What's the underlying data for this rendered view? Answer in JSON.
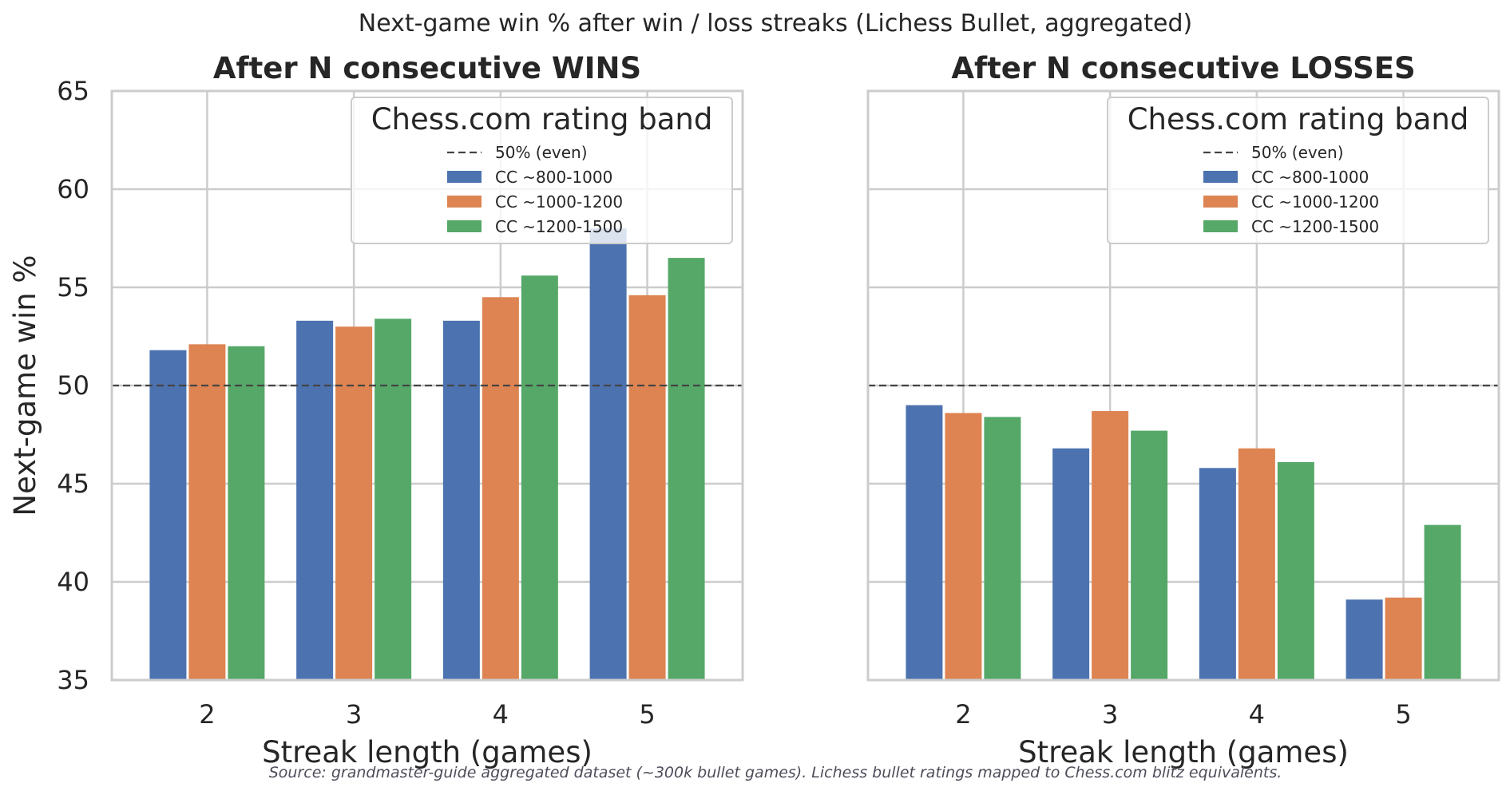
{
  "suptitle": "Next-game win % after win / loss streaks (Lichess Bullet, aggregated)",
  "footer": "Source: grandmaster-guide aggregated dataset (~300k bullet games). Lichess bullet ratings mapped to Chess.com blitz equivalents.",
  "colors": {
    "series": [
      "#4c72b0",
      "#dd8452",
      "#55a868"
    ],
    "reference": "#444444",
    "grid": "#cccccc",
    "spine": "#cccccc"
  },
  "chart_data": [
    {
      "type": "bar",
      "title": "After N consecutive WINS",
      "xlabel": "Streak length (games)",
      "ylabel": "Next-game win %",
      "categories": [
        "2",
        "3",
        "4",
        "5"
      ],
      "ylim": [
        35,
        65
      ],
      "yticks": [
        "35",
        "40",
        "45",
        "50",
        "55",
        "60",
        "65"
      ],
      "grid": true,
      "reference_line": {
        "value": 50,
        "label": "50% (even)"
      },
      "legend": {
        "title": "Chess.com rating band",
        "placement": "top-right"
      },
      "series": [
        {
          "name": "CC ~800-1000",
          "values": [
            51.8,
            53.3,
            53.3,
            58.0
          ]
        },
        {
          "name": "CC ~1000-1200",
          "values": [
            52.1,
            53.0,
            54.5,
            54.6
          ]
        },
        {
          "name": "CC ~1200-1500",
          "values": [
            52.0,
            53.4,
            55.6,
            56.5
          ]
        }
      ]
    },
    {
      "type": "bar",
      "title": "After N consecutive LOSSES",
      "xlabel": "Streak length (games)",
      "ylabel": "",
      "categories": [
        "2",
        "3",
        "4",
        "5"
      ],
      "ylim": [
        35,
        65
      ],
      "yticks": [],
      "grid": true,
      "reference_line": {
        "value": 50,
        "label": "50% (even)"
      },
      "legend": {
        "title": "Chess.com rating band",
        "placement": "top-right"
      },
      "series": [
        {
          "name": "CC ~800-1000",
          "values": [
            49.0,
            46.8,
            45.8,
            39.1
          ]
        },
        {
          "name": "CC ~1000-1200",
          "values": [
            48.6,
            48.7,
            46.8,
            39.2
          ]
        },
        {
          "name": "CC ~1200-1500",
          "values": [
            48.4,
            47.7,
            46.1,
            42.9
          ]
        }
      ]
    }
  ]
}
